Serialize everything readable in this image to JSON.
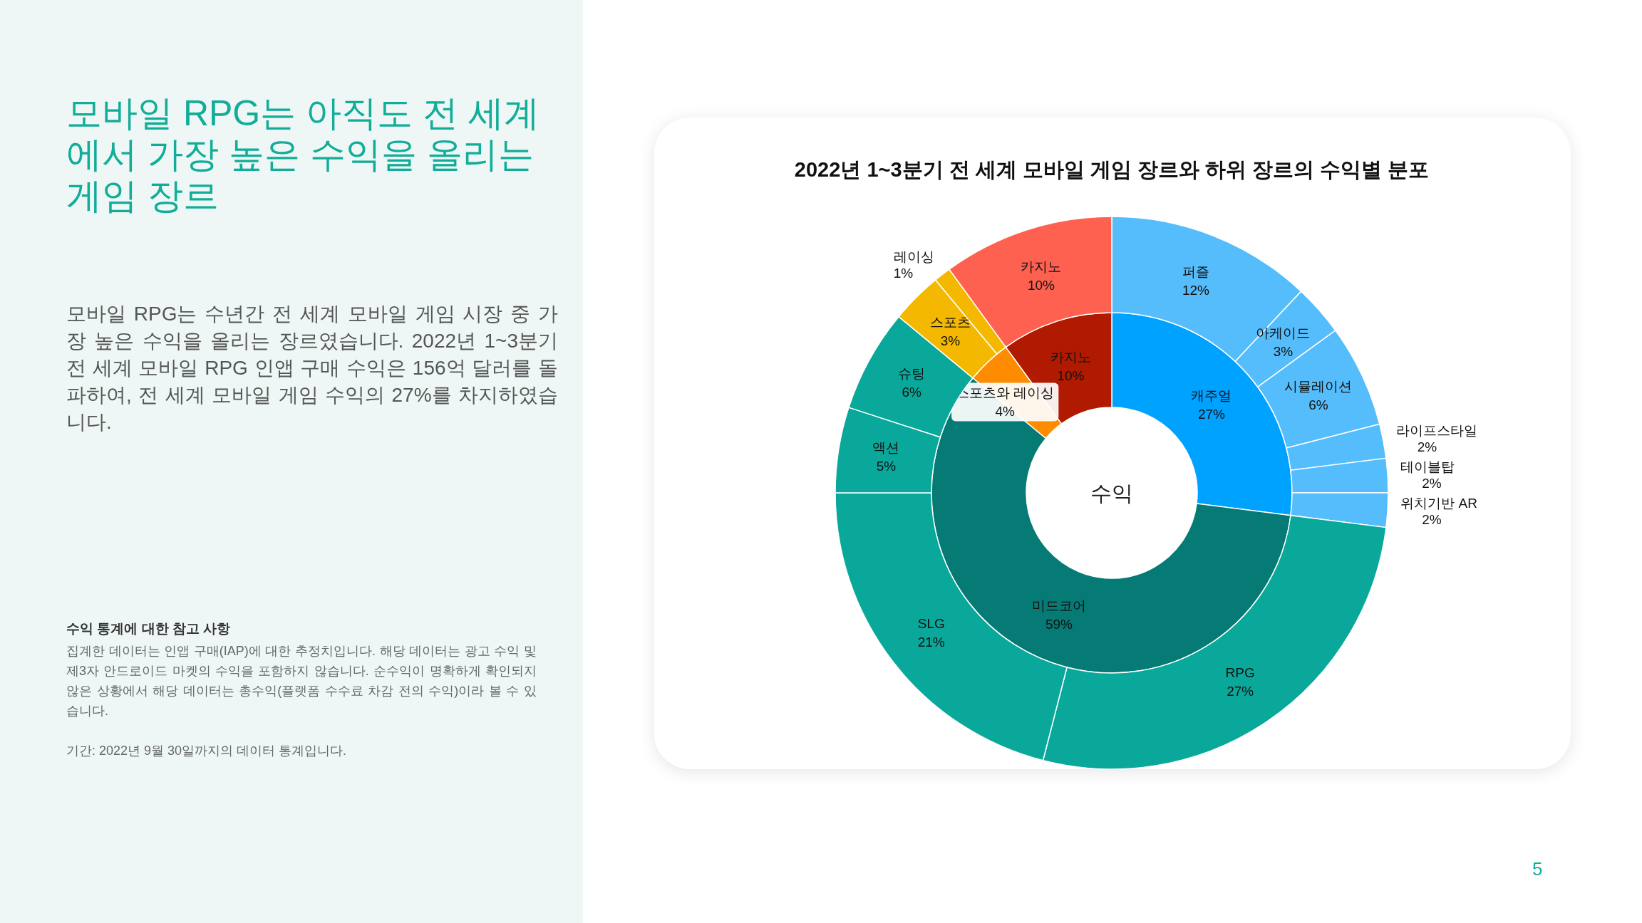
{
  "chart_data": [
    {
      "type": "other",
      "title": "모바일 RPG는 아직도 전 세계에서 가장 높은 수익을 올리는 게임 장르",
      "subtitle": "모바일 RPG는 수년간 전 세계 모바일 게임 시장 중 가장 높은 수익을 올리는 장르였습니다. 2022년 1~3분기 전 세계 모바일 RPG 인앱 구매 수익은 156억 달러를 돌파하여, 전 세계 모바일 게임 수익의 27%를 차지하였습니다.",
      "annotations": [
        "수익 통계에 대한 참고 사항",
        "집계한 데이터는 인앱 구매(IAP)에 대한 추정치입니다. 해당 데이터는 광고 수익 및 제3자 안드로이드 마켓의 수익을 포함하지 않습니다. 순수익이 명확하게 확인되지 않은 상황에서 해당 데이터는 총수익(플랫폼 수수료 차감 전의 수익)이라 볼 수 있습니다.",
        "기간: 2022년 9월 30일까지의 데이터 통계입니다.",
        "5"
      ]
    },
    {
      "type": "donut",
      "title": "2022년 1~3분기 전 세계 모바일 게임 장르와 하위 장르의 수익별 분포",
      "annotations": [
        "수익"
      ],
      "categories": [
        "캐주얼",
        "미드코어",
        "스포츠와 레이싱",
        "카지노"
      ],
      "values": [
        27,
        59,
        4,
        10
      ],
      "value_labels": [
        "27%",
        "59%",
        "4%",
        "10%"
      ],
      "colors": [
        "#00a2ff",
        "#067a74",
        "#ff8c00",
        "#b01a00"
      ]
    },
    {
      "type": "donut",
      "categories": [
        "퍼즐",
        "아케이드",
        "시뮬레이션",
        "라이프스타일",
        "테이블탑",
        "위치기반 AR",
        "RPG",
        "SLG",
        "액션",
        "슈팅",
        "스포츠",
        "레이싱",
        "카지노"
      ],
      "values": [
        12,
        3,
        6,
        2,
        2,
        2,
        27,
        21,
        5,
        6,
        3,
        1,
        10
      ],
      "value_labels": [
        "12%",
        "3%",
        "6%",
        "2%",
        "2%",
        "2%",
        "27%",
        "21%",
        "5%",
        "6%",
        "3%",
        "1%",
        "10%"
      ],
      "colors": [
        "#55bdfb",
        "#55bdfb",
        "#55bdfb",
        "#55bdfb",
        "#55bdfb",
        "#55bdfb",
        "#0aa89a",
        "#0aa89a",
        "#0aa89a",
        "#0aa89a",
        "#f5b800",
        "#f5b800",
        "#ff6150"
      ]
    }
  ]
}
